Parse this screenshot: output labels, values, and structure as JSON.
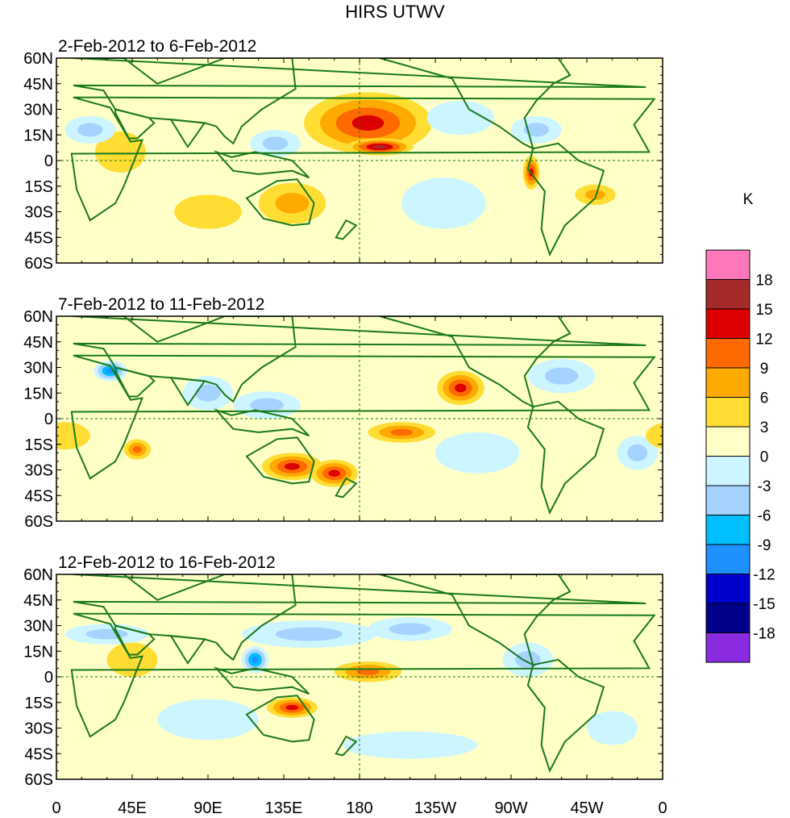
{
  "chart_data": {
    "type": "heatmap",
    "title": "HIRS UTWV",
    "unit": "K",
    "x_tick_labels": [
      "0",
      "45E",
      "90E",
      "135E",
      "180",
      "135W",
      "90W",
      "45W",
      "0"
    ],
    "y_tick_labels": [
      "60N",
      "45N",
      "30N",
      "15N",
      "0",
      "15S",
      "30S",
      "45S",
      "60S"
    ],
    "lon_range": [
      0,
      360
    ],
    "lat_range": [
      -60,
      60
    ],
    "colorbar": {
      "levels": [
        "18",
        "15",
        "12",
        "9",
        "6",
        "3",
        "0",
        "-3",
        "-6",
        "-9",
        "-12",
        "-15",
        "-18"
      ],
      "colors": [
        "#ff77bb",
        "#a52a2a",
        "#dd0000",
        "#ff6a00",
        "#ffaa00",
        "#ffdd33",
        "#ffffc8",
        "#cdf5ff",
        "#a6d2ff",
        "#00bfff",
        "#1e90ff",
        "#0000cc",
        "#000088",
        "#8a2be2"
      ]
    },
    "panels": [
      {
        "subtitle": "2-Feb-2012 to 6-Feb-2012",
        "anomalies": [
          {
            "lon": 185,
            "lat": 22,
            "rx": 38,
            "ry": 18,
            "v": 13
          },
          {
            "lon": 192,
            "lat": 8,
            "rx": 20,
            "ry": 5,
            "v": 15
          },
          {
            "lon": 282,
            "lat": -7,
            "rx": 5,
            "ry": 10,
            "v": 13
          },
          {
            "lon": 320,
            "lat": -20,
            "rx": 12,
            "ry": 6,
            "v": 7
          },
          {
            "lon": 140,
            "lat": -25,
            "rx": 20,
            "ry": 12,
            "v": 6
          },
          {
            "lon": 38,
            "lat": 5,
            "rx": 15,
            "ry": 12,
            "v": 5
          },
          {
            "lon": 20,
            "lat": 18,
            "rx": 15,
            "ry": 8,
            "v": -6
          },
          {
            "lon": 240,
            "lat": 25,
            "rx": 20,
            "ry": 10,
            "v": -5
          },
          {
            "lon": 285,
            "lat": 18,
            "rx": 15,
            "ry": 8,
            "v": -7
          },
          {
            "lon": 90,
            "lat": -30,
            "rx": 20,
            "ry": 10,
            "v": 5
          },
          {
            "lon": 230,
            "lat": -25,
            "rx": 25,
            "ry": 15,
            "v": -5
          },
          {
            "lon": 130,
            "lat": 10,
            "rx": 15,
            "ry": 8,
            "v": -6
          }
        ]
      },
      {
        "subtitle": "7-Feb-2012 to 11-Feb-2012",
        "anomalies": [
          {
            "lon": 140,
            "lat": -28,
            "rx": 18,
            "ry": 8,
            "v": 12
          },
          {
            "lon": 165,
            "lat": -32,
            "rx": 14,
            "ry": 8,
            "v": 12
          },
          {
            "lon": 240,
            "lat": 18,
            "rx": 14,
            "ry": 10,
            "v": 12
          },
          {
            "lon": 205,
            "lat": -8,
            "rx": 20,
            "ry": 6,
            "v": 10
          },
          {
            "lon": 32,
            "lat": 28,
            "rx": 10,
            "ry": 6,
            "v": -13
          },
          {
            "lon": 48,
            "lat": -18,
            "rx": 8,
            "ry": 6,
            "v": 10
          },
          {
            "lon": 90,
            "lat": 15,
            "rx": 15,
            "ry": 10,
            "v": -6
          },
          {
            "lon": 125,
            "lat": 8,
            "rx": 20,
            "ry": 8,
            "v": -6
          },
          {
            "lon": 250,
            "lat": -20,
            "rx": 25,
            "ry": 12,
            "v": -5
          },
          {
            "lon": 300,
            "lat": 25,
            "rx": 20,
            "ry": 10,
            "v": -6
          },
          {
            "lon": 345,
            "lat": -20,
            "rx": 12,
            "ry": 10,
            "v": -8
          },
          {
            "lon": 5,
            "lat": -10,
            "rx": 15,
            "ry": 8,
            "v": 5
          }
        ]
      },
      {
        "subtitle": "12-Feb-2012 to 16-Feb-2012",
        "anomalies": [
          {
            "lon": 185,
            "lat": 3,
            "rx": 20,
            "ry": 6,
            "v": 10
          },
          {
            "lon": 140,
            "lat": -18,
            "rx": 15,
            "ry": 6,
            "v": 13
          },
          {
            "lon": 118,
            "lat": 10,
            "rx": 8,
            "ry": 8,
            "v": -13
          },
          {
            "lon": 30,
            "lat": 25,
            "rx": 25,
            "ry": 6,
            "v": -7
          },
          {
            "lon": 150,
            "lat": 25,
            "rx": 40,
            "ry": 8,
            "v": -7
          },
          {
            "lon": 210,
            "lat": 28,
            "rx": 25,
            "ry": 7,
            "v": -8
          },
          {
            "lon": 280,
            "lat": 10,
            "rx": 15,
            "ry": 10,
            "v": -7
          },
          {
            "lon": 90,
            "lat": -25,
            "rx": 30,
            "ry": 12,
            "v": -5
          },
          {
            "lon": 210,
            "lat": -40,
            "rx": 40,
            "ry": 8,
            "v": -5
          },
          {
            "lon": 330,
            "lat": -30,
            "rx": 15,
            "ry": 10,
            "v": -5
          },
          {
            "lon": 45,
            "lat": 10,
            "rx": 15,
            "ry": 10,
            "v": 4
          }
        ]
      }
    ]
  }
}
